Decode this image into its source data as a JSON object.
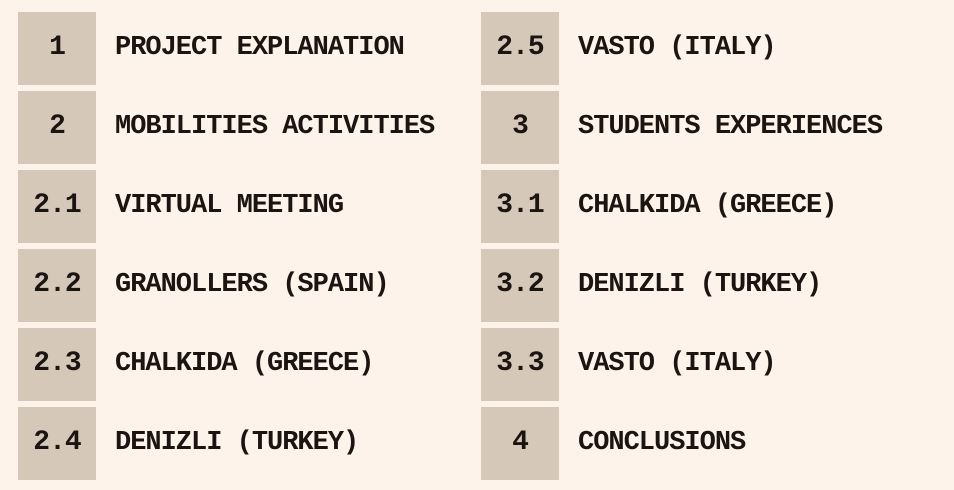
{
  "page": {
    "background_color": "#fdf3ea",
    "number_box_color": "#d6c8b9",
    "text_color": "#1b1410"
  },
  "toc": {
    "columns": [
      {
        "items": [
          {
            "number": "1",
            "label": "PROJECT EXPLANATION"
          },
          {
            "number": "2",
            "label": "MOBILITIES ACTIVITIES"
          },
          {
            "number": "2.1",
            "label": "VIRTUAL MEETING"
          },
          {
            "number": "2.2",
            "label": "GRANOLLERS (SPAIN)"
          },
          {
            "number": "2.3",
            "label": "CHALKIDA (GREECE)"
          },
          {
            "number": "2.4",
            "label": "DENIZLI (TURKEY)"
          }
        ]
      },
      {
        "items": [
          {
            "number": "2.5",
            "label": "VASTO (ITALY)"
          },
          {
            "number": "3",
            "label": "STUDENTS EXPERIENCES"
          },
          {
            "number": "3.1",
            "label": "CHALKIDA (GREECE)"
          },
          {
            "number": "3.2",
            "label": "DENIZLI (TURKEY)"
          },
          {
            "number": "3.3",
            "label": "VASTO (ITALY)"
          },
          {
            "number": "4",
            "label": "CONCLUSIONS"
          }
        ]
      }
    ]
  }
}
